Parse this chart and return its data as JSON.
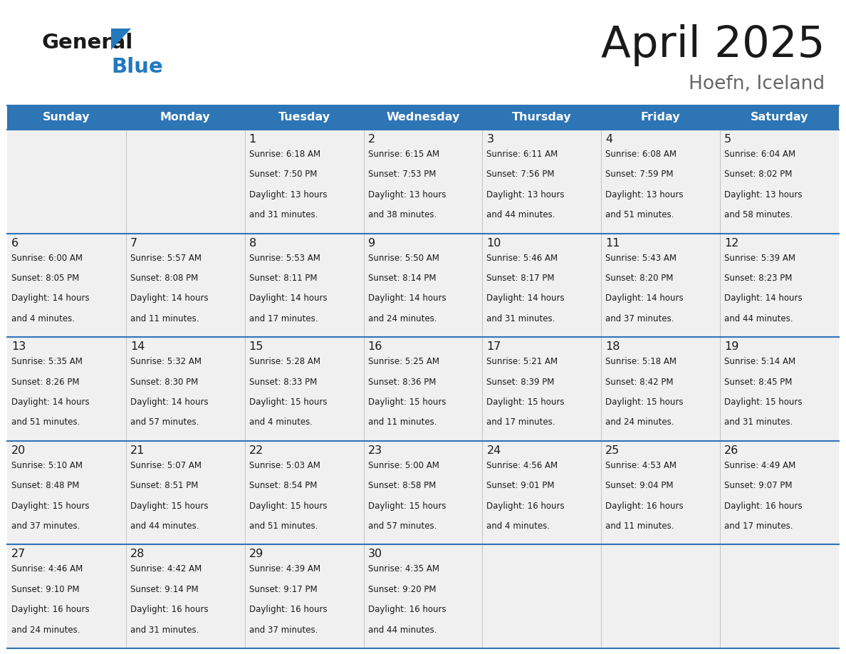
{
  "title": "April 2025",
  "subtitle": "Hoefn, Iceland",
  "header_color": "#2E75B6",
  "header_text_color": "#FFFFFF",
  "cell_bg_color": "#F0F0F0",
  "grid_line_color": "#2E75B6",
  "days_of_week": [
    "Sunday",
    "Monday",
    "Tuesday",
    "Wednesday",
    "Thursday",
    "Friday",
    "Saturday"
  ],
  "weeks": [
    [
      {
        "day": null,
        "text": ""
      },
      {
        "day": null,
        "text": ""
      },
      {
        "day": 1,
        "text": "Sunrise: 6:18 AM\nSunset: 7:50 PM\nDaylight: 13 hours\nand 31 minutes."
      },
      {
        "day": 2,
        "text": "Sunrise: 6:15 AM\nSunset: 7:53 PM\nDaylight: 13 hours\nand 38 minutes."
      },
      {
        "day": 3,
        "text": "Sunrise: 6:11 AM\nSunset: 7:56 PM\nDaylight: 13 hours\nand 44 minutes."
      },
      {
        "day": 4,
        "text": "Sunrise: 6:08 AM\nSunset: 7:59 PM\nDaylight: 13 hours\nand 51 minutes."
      },
      {
        "day": 5,
        "text": "Sunrise: 6:04 AM\nSunset: 8:02 PM\nDaylight: 13 hours\nand 58 minutes."
      }
    ],
    [
      {
        "day": 6,
        "text": "Sunrise: 6:00 AM\nSunset: 8:05 PM\nDaylight: 14 hours\nand 4 minutes."
      },
      {
        "day": 7,
        "text": "Sunrise: 5:57 AM\nSunset: 8:08 PM\nDaylight: 14 hours\nand 11 minutes."
      },
      {
        "day": 8,
        "text": "Sunrise: 5:53 AM\nSunset: 8:11 PM\nDaylight: 14 hours\nand 17 minutes."
      },
      {
        "day": 9,
        "text": "Sunrise: 5:50 AM\nSunset: 8:14 PM\nDaylight: 14 hours\nand 24 minutes."
      },
      {
        "day": 10,
        "text": "Sunrise: 5:46 AM\nSunset: 8:17 PM\nDaylight: 14 hours\nand 31 minutes."
      },
      {
        "day": 11,
        "text": "Sunrise: 5:43 AM\nSunset: 8:20 PM\nDaylight: 14 hours\nand 37 minutes."
      },
      {
        "day": 12,
        "text": "Sunrise: 5:39 AM\nSunset: 8:23 PM\nDaylight: 14 hours\nand 44 minutes."
      }
    ],
    [
      {
        "day": 13,
        "text": "Sunrise: 5:35 AM\nSunset: 8:26 PM\nDaylight: 14 hours\nand 51 minutes."
      },
      {
        "day": 14,
        "text": "Sunrise: 5:32 AM\nSunset: 8:30 PM\nDaylight: 14 hours\nand 57 minutes."
      },
      {
        "day": 15,
        "text": "Sunrise: 5:28 AM\nSunset: 8:33 PM\nDaylight: 15 hours\nand 4 minutes."
      },
      {
        "day": 16,
        "text": "Sunrise: 5:25 AM\nSunset: 8:36 PM\nDaylight: 15 hours\nand 11 minutes."
      },
      {
        "day": 17,
        "text": "Sunrise: 5:21 AM\nSunset: 8:39 PM\nDaylight: 15 hours\nand 17 minutes."
      },
      {
        "day": 18,
        "text": "Sunrise: 5:18 AM\nSunset: 8:42 PM\nDaylight: 15 hours\nand 24 minutes."
      },
      {
        "day": 19,
        "text": "Sunrise: 5:14 AM\nSunset: 8:45 PM\nDaylight: 15 hours\nand 31 minutes."
      }
    ],
    [
      {
        "day": 20,
        "text": "Sunrise: 5:10 AM\nSunset: 8:48 PM\nDaylight: 15 hours\nand 37 minutes."
      },
      {
        "day": 21,
        "text": "Sunrise: 5:07 AM\nSunset: 8:51 PM\nDaylight: 15 hours\nand 44 minutes."
      },
      {
        "day": 22,
        "text": "Sunrise: 5:03 AM\nSunset: 8:54 PM\nDaylight: 15 hours\nand 51 minutes."
      },
      {
        "day": 23,
        "text": "Sunrise: 5:00 AM\nSunset: 8:58 PM\nDaylight: 15 hours\nand 57 minutes."
      },
      {
        "day": 24,
        "text": "Sunrise: 4:56 AM\nSunset: 9:01 PM\nDaylight: 16 hours\nand 4 minutes."
      },
      {
        "day": 25,
        "text": "Sunrise: 4:53 AM\nSunset: 9:04 PM\nDaylight: 16 hours\nand 11 minutes."
      },
      {
        "day": 26,
        "text": "Sunrise: 4:49 AM\nSunset: 9:07 PM\nDaylight: 16 hours\nand 17 minutes."
      }
    ],
    [
      {
        "day": 27,
        "text": "Sunrise: 4:46 AM\nSunset: 9:10 PM\nDaylight: 16 hours\nand 24 minutes."
      },
      {
        "day": 28,
        "text": "Sunrise: 4:42 AM\nSunset: 9:14 PM\nDaylight: 16 hours\nand 31 minutes."
      },
      {
        "day": 29,
        "text": "Sunrise: 4:39 AM\nSunset: 9:17 PM\nDaylight: 16 hours\nand 37 minutes."
      },
      {
        "day": 30,
        "text": "Sunrise: 4:35 AM\nSunset: 9:20 PM\nDaylight: 16 hours\nand 44 minutes."
      },
      {
        "day": null,
        "text": ""
      },
      {
        "day": null,
        "text": ""
      },
      {
        "day": null,
        "text": ""
      }
    ]
  ],
  "logo_color_general": "#1a1a1a",
  "logo_color_blue": "#2279BD"
}
